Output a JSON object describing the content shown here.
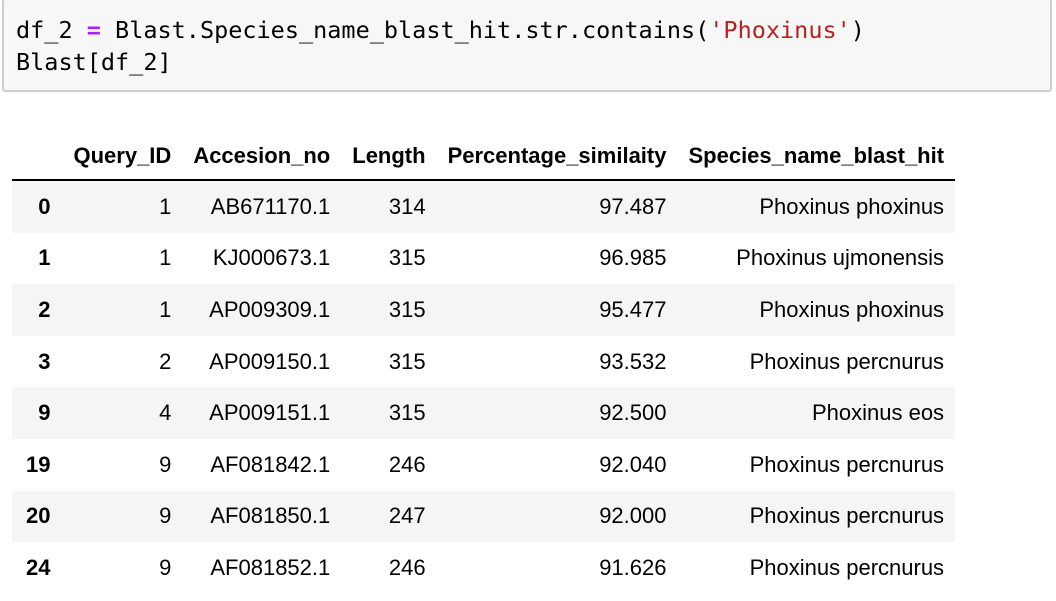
{
  "code": {
    "line1_a": "df_2 ",
    "line1_op": "=",
    "line1_b": " Blast.Species_name_blast_hit.str.contains(",
    "line1_str": "'Phoxinus'",
    "line1_c": ")",
    "line2": "Blast[df_2]"
  },
  "table": {
    "columns": [
      "",
      "Query_ID",
      "Accesion_no",
      "Length",
      "Percentage_similaity",
      "Species_name_blast_hit"
    ],
    "rows": [
      [
        "0",
        "1",
        "AB671170.1",
        "314",
        "97.487",
        "Phoxinus phoxinus"
      ],
      [
        "1",
        "1",
        "KJ000673.1",
        "315",
        "96.985",
        "Phoxinus ujmonensis"
      ],
      [
        "2",
        "1",
        "AP009309.1",
        "315",
        "95.477",
        "Phoxinus phoxinus"
      ],
      [
        "3",
        "2",
        "AP009150.1",
        "315",
        "93.532",
        "Phoxinus percnurus"
      ],
      [
        "9",
        "4",
        "AP009151.1",
        "315",
        "92.500",
        "Phoxinus eos"
      ],
      [
        "19",
        "9",
        "AF081842.1",
        "246",
        "92.040",
        "Phoxinus percnurus"
      ],
      [
        "20",
        "9",
        "AF081850.1",
        "247",
        "92.000",
        "Phoxinus percnurus"
      ],
      [
        "24",
        "9",
        "AF081852.1",
        "246",
        "91.626",
        "Phoxinus percnurus"
      ]
    ]
  }
}
